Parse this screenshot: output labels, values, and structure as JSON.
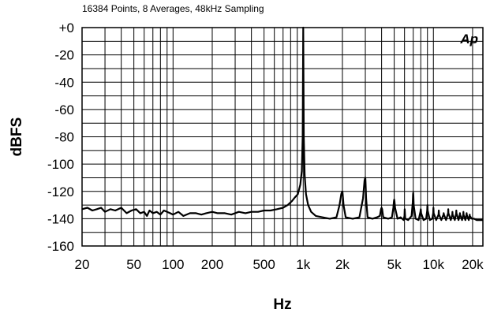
{
  "chart_data": {
    "type": "line",
    "title": "16384 Points, 8 Averages, 48kHz Sampling",
    "xlabel": "Hz",
    "ylabel": "dBFS",
    "xscale": "log",
    "xlim": [
      20,
      24000
    ],
    "ylim": [
      -160,
      0
    ],
    "grid": true,
    "legend": "none",
    "logo_text": "Ap",
    "x_tick_labels": [
      {
        "value": 20,
        "label": "20"
      },
      {
        "value": 50,
        "label": "50"
      },
      {
        "value": 100,
        "label": "100"
      },
      {
        "value": 200,
        "label": "200"
      },
      {
        "value": 500,
        "label": "500"
      },
      {
        "value": 1000,
        "label": "1k"
      },
      {
        "value": 2000,
        "label": "2k"
      },
      {
        "value": 5000,
        "label": "5k"
      },
      {
        "value": 10000,
        "label": "10k"
      },
      {
        "value": 20000,
        "label": "20k"
      }
    ],
    "x_minor_ticks": [
      30,
      40,
      60,
      70,
      80,
      90,
      300,
      400,
      600,
      700,
      800,
      900,
      3000,
      4000,
      6000,
      7000,
      8000,
      9000
    ],
    "y_tick_labels": [
      {
        "value": 0,
        "label": "+0"
      },
      {
        "value": -20,
        "label": "-20"
      },
      {
        "value": -40,
        "label": "-40"
      },
      {
        "value": -60,
        "label": "-60"
      },
      {
        "value": -80,
        "label": "-80"
      },
      {
        "value": -100,
        "label": "-100"
      },
      {
        "value": -120,
        "label": "-120"
      },
      {
        "value": -140,
        "label": "-140"
      },
      {
        "value": -160,
        "label": "-160"
      }
    ],
    "y_minor_ticks": [
      -10,
      -30,
      -50,
      -70,
      -90,
      -110,
      -130,
      -150
    ],
    "line_color": "#000000",
    "series": [
      {
        "x": [
          20,
          22,
          24,
          26,
          28,
          30,
          33,
          36,
          40,
          44,
          48,
          52,
          56,
          60,
          63,
          66,
          70,
          75,
          80,
          85,
          90,
          95,
          100,
          110,
          120,
          135,
          150,
          165,
          180,
          200,
          220,
          250,
          280,
          320,
          360,
          400,
          450,
          500,
          560,
          630,
          700,
          760,
          820,
          870,
          910,
          950,
          975,
          990,
          1000,
          1010,
          1025,
          1050,
          1090,
          1150,
          1250,
          1400,
          1600,
          1800,
          1900,
          1960,
          1990,
          2000,
          2010,
          2040,
          2120,
          2400,
          2700,
          2880,
          2960,
          2990,
          3000,
          3010,
          3040,
          3120,
          3400,
          3700,
          3880,
          3960,
          4000,
          4040,
          4120,
          4500,
          4800,
          4920,
          4980,
          5000,
          5020,
          5080,
          5300,
          5600,
          5900,
          5990,
          6020,
          6080,
          6400,
          6800,
          6940,
          6980,
          7000,
          7020,
          7060,
          7300,
          7700,
          7950,
          8000,
          8050,
          8400,
          8800,
          8960,
          9000,
          9040,
          9400,
          9800,
          9960,
          10000,
          10040,
          10500,
          10960,
          11000,
          11040,
          11500,
          11960,
          12000,
          12040,
          12500,
          12960,
          13000,
          13040,
          13600,
          13960,
          14000,
          14040,
          14600,
          14960,
          15000,
          15040,
          15600,
          15960,
          16000,
          16040,
          16600,
          16960,
          17000,
          17040,
          17600,
          17960,
          18000,
          18040,
          18700,
          18960,
          19000,
          19040,
          19700,
          20500,
          21500,
          22500,
          24000
        ],
        "y": [
          -133,
          -132,
          -134,
          -133,
          -132,
          -135,
          -133,
          -134,
          -132,
          -136,
          -134,
          -133,
          -136,
          -135,
          -138,
          -134,
          -136,
          -135,
          -137,
          -134,
          -135,
          -136,
          -137,
          -135,
          -138,
          -136,
          -136,
          -137,
          -136,
          -135,
          -136,
          -136,
          -137,
          -135,
          -136,
          -135,
          -135,
          -134,
          -134,
          -133,
          -132,
          -130,
          -127,
          -124,
          -122,
          -115,
          -105,
          -80,
          0,
          -80,
          -108,
          -122,
          -130,
          -135,
          -138,
          -139,
          -140,
          -139,
          -130,
          -122,
          -120,
          -120,
          -122,
          -130,
          -139,
          -140,
          -139,
          -125,
          -112,
          -110,
          -110,
          -112,
          -125,
          -139,
          -140,
          -139,
          -138,
          -133,
          -132,
          -133,
          -139,
          -140,
          -139,
          -132,
          -127,
          -126,
          -127,
          -132,
          -140,
          -139,
          -141,
          -138,
          -133,
          -140,
          -141,
          -138,
          -128,
          -122,
          -121,
          -123,
          -130,
          -140,
          -141,
          -135,
          -133,
          -136,
          -141,
          -140,
          -134,
          -130,
          -134,
          -141,
          -140,
          -136,
          -132,
          -136,
          -141,
          -137,
          -134,
          -137,
          -141,
          -137,
          -136,
          -137,
          -141,
          -136,
          -133,
          -136,
          -141,
          -137,
          -135,
          -137,
          -141,
          -136,
          -134,
          -136,
          -141,
          -137,
          -136,
          -137,
          -141,
          -137,
          -135,
          -137,
          -141,
          -137,
          -136,
          -137,
          -141,
          -138,
          -137,
          -138,
          -140,
          -140,
          -141,
          -141,
          -141
        ]
      }
    ]
  }
}
